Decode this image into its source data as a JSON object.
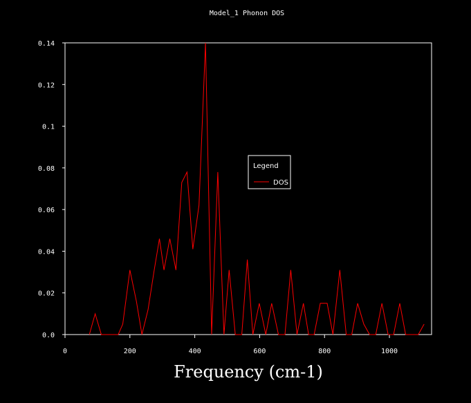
{
  "chart_data": {
    "type": "line",
    "title": "Model_1 Phonon DOS",
    "xlabel": "Frequency (cm-1)",
    "ylabel": "",
    "xlim": [
      0,
      1130
    ],
    "ylim": [
      0,
      0.14
    ],
    "x_ticks": [
      0,
      200,
      400,
      600,
      800,
      1000
    ],
    "y_ticks": [
      "0.0",
      "0.02",
      "0.04",
      "0.06",
      "0.08",
      "0.1",
      "0.12",
      "0.14"
    ],
    "y_tick_values": [
      0,
      0.02,
      0.04,
      0.06,
      0.08,
      0.1,
      0.12,
      0.14
    ],
    "grid": false,
    "legend": {
      "title": "Legend",
      "placement": "center-right"
    },
    "series": [
      {
        "name": "DOS",
        "color": "#ff0000",
        "x": [
          75,
          93,
          112,
          164,
          178,
          200,
          220,
          237,
          256,
          275,
          291,
          305,
          323,
          342,
          360,
          376,
          394,
          413,
          433,
          452,
          471,
          490,
          506,
          525,
          545,
          562,
          579,
          599,
          619,
          637,
          658,
          678,
          696,
          715,
          735,
          751,
          768,
          787,
          808,
          826,
          847,
          867,
          884,
          902,
          921,
          939,
          958,
          977,
          996,
          1013,
          1032,
          1050,
          1071,
          1089,
          1107
        ],
        "y": [
          0,
          0.01,
          0,
          0,
          0.005,
          0.031,
          0.016,
          0,
          0.012,
          0.031,
          0.046,
          0.031,
          0.046,
          0.031,
          0.073,
          0.078,
          0.041,
          0.062,
          0.14,
          0,
          0.078,
          0,
          0.031,
          0,
          0,
          0.036,
          0,
          0.015,
          0,
          0.015,
          0,
          0,
          0.031,
          0,
          0.015,
          0,
          0,
          0.015,
          0.015,
          0,
          0.031,
          0,
          0,
          0.015,
          0.005,
          0,
          0,
          0.015,
          0,
          0,
          0.015,
          0,
          0,
          0,
          0.005
        ]
      }
    ]
  }
}
